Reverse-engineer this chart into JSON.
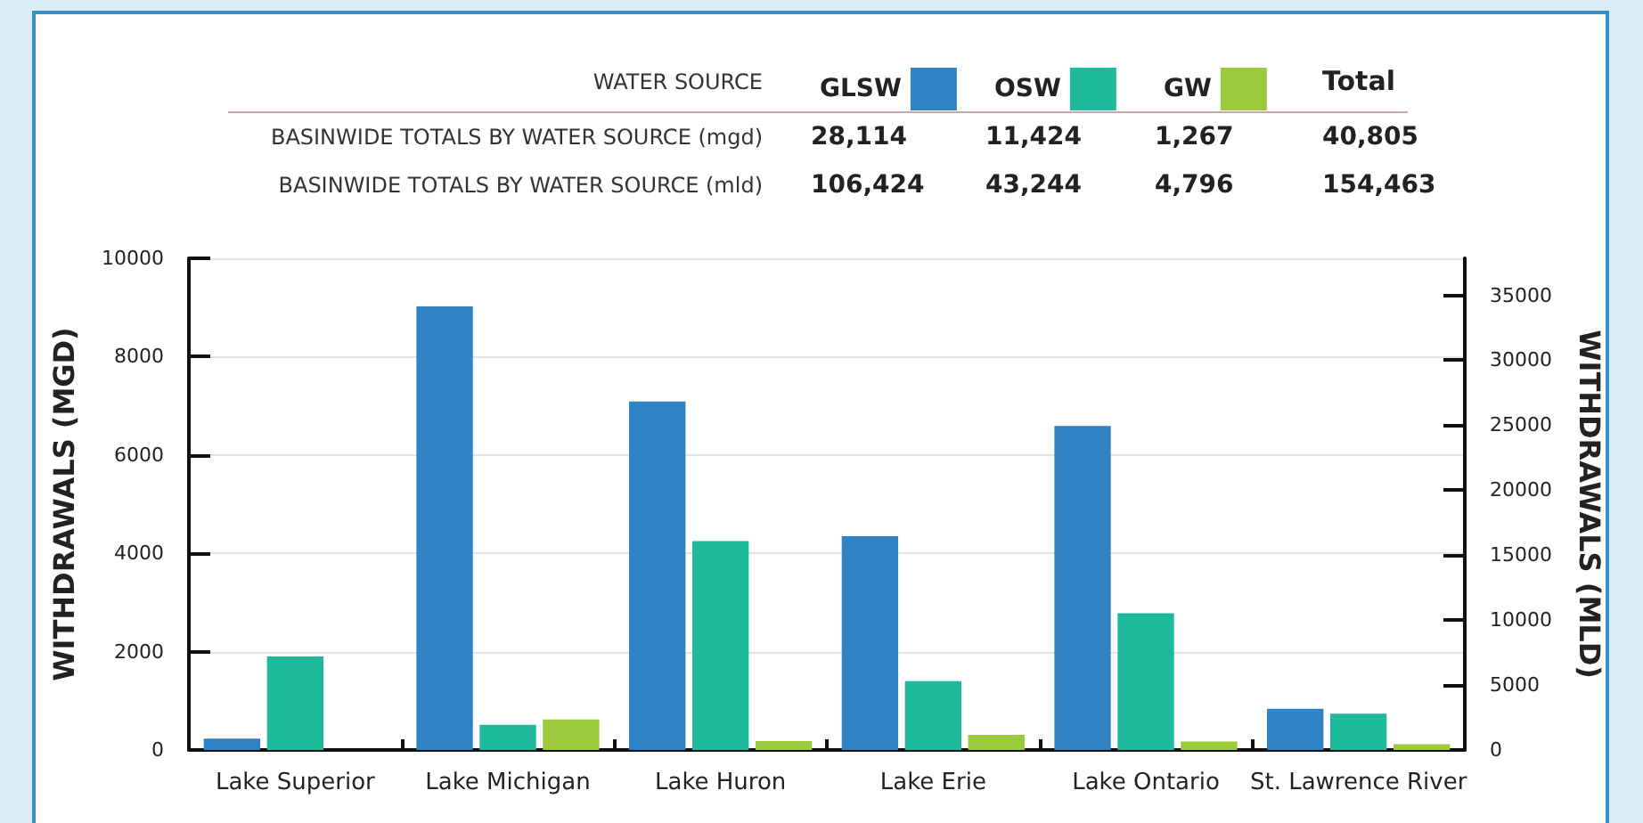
{
  "chart_data": {
    "type": "bar",
    "categories": [
      "Lake Superior",
      "Lake Michigan",
      "Lake Huron",
      "Lake Erie",
      "Lake Ontario",
      "St. Lawrence River"
    ],
    "series": [
      {
        "name": "GLSW",
        "color": "#2f83c5",
        "values": [
          230,
          9020,
          7090,
          4350,
          6590,
          840
        ]
      },
      {
        "name": "OSW",
        "color": "#1fb99c",
        "values": [
          1900,
          510,
          4250,
          1400,
          2780,
          740
        ]
      },
      {
        "name": "GW",
        "color": "#9bcb3c",
        "values": [
          0,
          620,
          180,
          310,
          170,
          120
        ]
      }
    ],
    "legend_title": "WATER SOURCE",
    "legend": "top",
    "annotations": [
      "Total",
      "BASINWIDE TOTALS BY WATER SOURCE (mgd)",
      "28,114",
      "11,424",
      "1,267",
      "40,805",
      "BASINWIDE TOTALS BY WATER SOURCE (mld)",
      "106,424",
      "43,244",
      "4,796",
      "154,463"
    ],
    "ylabel": "WITHDRAWALS (MGD)",
    "y2label": "WITHDRAWALS (MLD)",
    "ylim": [
      0,
      10000
    ],
    "yticks": [
      0,
      2000,
      4000,
      6000,
      8000,
      10000
    ],
    "y2lim": [
      0,
      37850
    ],
    "y2ticks": [
      0,
      5000,
      10000,
      15000,
      20000,
      25000,
      30000,
      35000
    ],
    "grid": "y"
  }
}
